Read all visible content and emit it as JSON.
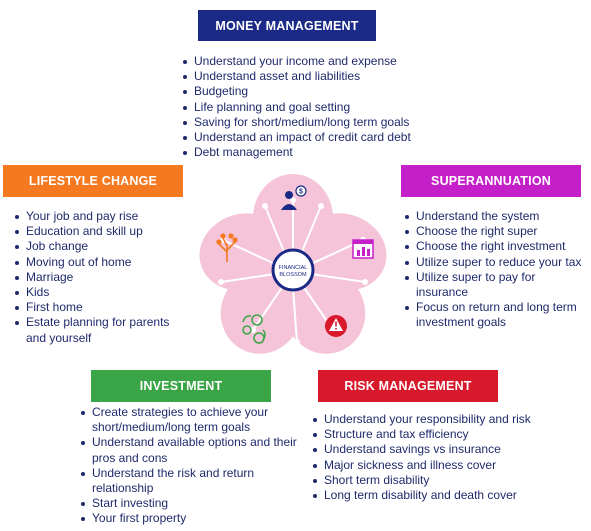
{
  "colors": {
    "money": "#1a2a86",
    "lifestyle": "#f47920",
    "super": "#c51fc9",
    "investment": "#3aa547",
    "risk": "#d8182b",
    "text": "#1f2a6b",
    "petal": "#f5c4d8",
    "circuit": "#ffffff",
    "core_ring": "#1a2a86"
  },
  "money_management": {
    "title": "MONEY MANAGEMENT",
    "items": [
      "Understand your income and expense",
      "Understand asset and liabilities",
      "Budgeting",
      "Life planning and goal setting",
      "Saving for short/medium/long term goals",
      "Understand an impact of credit card debt",
      "Debt management"
    ]
  },
  "lifestyle_change": {
    "title": "LIFESTYLE CHANGE",
    "items": [
      "Your job and pay rise",
      "Education and skill up",
      "Job change",
      "Moving out of home",
      "Marriage",
      "Kids",
      "First home",
      "Estate planning for parents and yourself"
    ]
  },
  "superannuation": {
    "title": "SUPERANNUATION",
    "items": [
      "Understand the system",
      "Choose the right super",
      "Choose the right investment",
      "Utilize super to reduce your tax",
      "Utilize super to pay for insurance",
      "Focus on return and long term investment goals"
    ]
  },
  "investment": {
    "title": "INVESTMENT",
    "items": [
      "Create strategies to achieve your short/medium/long term goals",
      "Understand available options and their pros and cons",
      "Understand the risk and return relationship",
      "Start investing",
      "Your first property"
    ]
  },
  "risk_management": {
    "title": "RISK MANAGEMENT",
    "items": [
      "Understand your responsibility and risk",
      "Structure and tax efficiency",
      "Understand savings vs insurance",
      "Major sickness and illness cover",
      "Short term disability",
      "Long term disability and death cover"
    ]
  },
  "center": {
    "line1": "FINANCIAL",
    "line2": "BLOSSOM"
  },
  "petal_icons": [
    "person-dollar-icon",
    "chart-icon",
    "warning-icon",
    "coins-exchange-icon",
    "growth-tree-icon"
  ]
}
